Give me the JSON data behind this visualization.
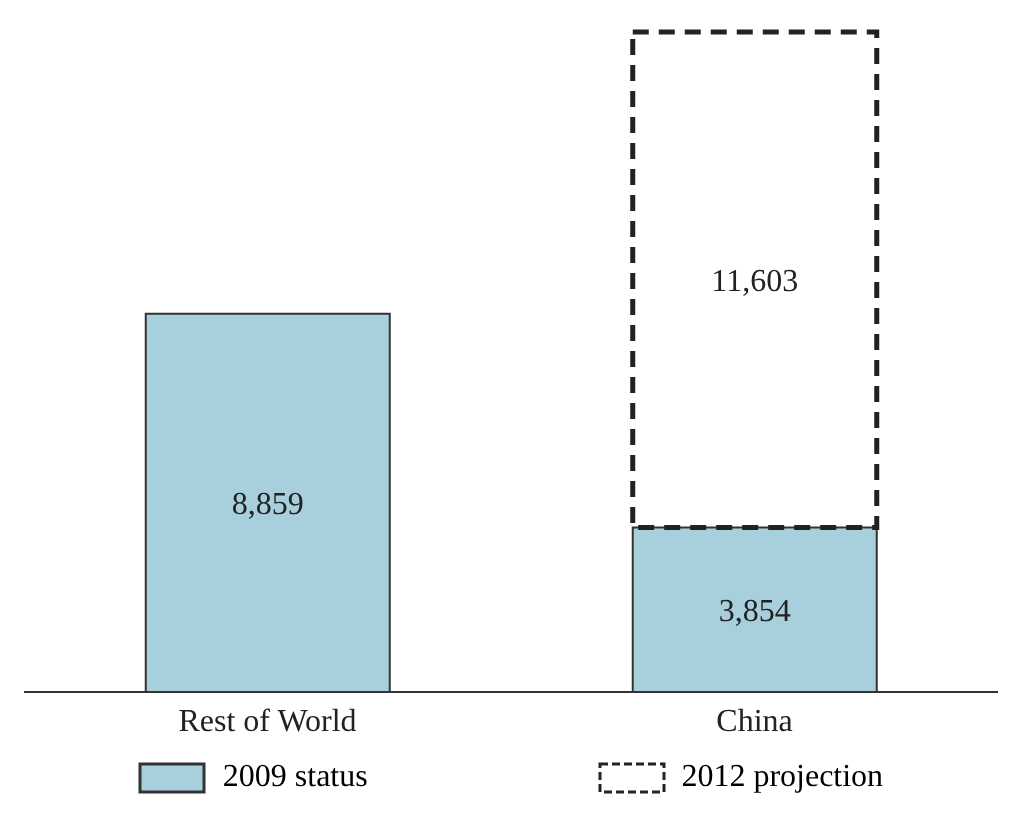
{
  "chart_data": {
    "type": "bar",
    "stacked": true,
    "legend": "bottom",
    "categories": [
      "Rest of World",
      "China"
    ],
    "series": [
      {
        "name": "2009 status",
        "color": "#a8d0dc",
        "values": [
          8859,
          3854
        ],
        "value_labels": [
          "8,859",
          "3,854"
        ]
      },
      {
        "name": "2012 projection",
        "color": "#222222",
        "line_style": "dashed",
        "values": [
          null,
          11603
        ],
        "value_labels": [
          null,
          "11,603"
        ]
      }
    ]
  }
}
